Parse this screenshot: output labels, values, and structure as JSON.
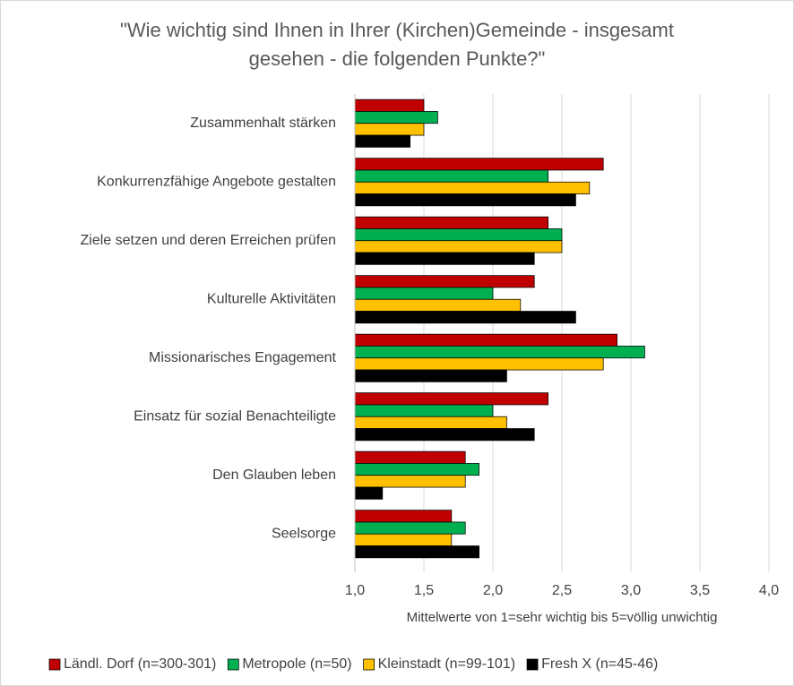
{
  "chart_data": {
    "type": "bar",
    "orientation": "horizontal",
    "title": "\"Wie wichtig sind Ihnen in Ihrer (Kirchen)Gemeinde - insgesamt gesehen - die folgenden Punkte?\"",
    "xlabel": "Mittelwerte von 1=sehr wichtig bis 5=völlig unwichtig",
    "categories": [
      "Zusammenhalt stärken",
      "Konkurrenzfähige Angebote gestalten",
      "Ziele setzen und deren Erreichen prüfen",
      "Kulturelle Aktivitäten",
      "Missionarisches Engagement",
      "Einsatz für sozial Benachteiligte",
      "Den Glauben leben",
      "Seelsorge"
    ],
    "series": [
      {
        "name": "Ländl. Dorf (n=300-301)",
        "color": "#c00000",
        "values": [
          1.5,
          2.8,
          2.4,
          2.3,
          2.9,
          2.4,
          1.8,
          1.7
        ]
      },
      {
        "name": "Metropole (n=50)",
        "color": "#00b050",
        "values": [
          1.6,
          2.4,
          2.5,
          2.0,
          3.1,
          2.0,
          1.9,
          1.8
        ]
      },
      {
        "name": "Kleinstadt (n=99-101)",
        "color": "#ffc000",
        "values": [
          1.5,
          2.7,
          2.5,
          2.2,
          2.8,
          2.1,
          1.8,
          1.7
        ]
      },
      {
        "name": "Fresh X (n=45-46)",
        "color": "#000000",
        "values": [
          1.4,
          2.6,
          2.3,
          2.6,
          2.1,
          2.3,
          1.2,
          1.9
        ]
      }
    ],
    "xlim": [
      1,
      4
    ],
    "xticks": [
      {
        "value": 1,
        "label": "1,0"
      },
      {
        "value": 1.5,
        "label": "1,5"
      },
      {
        "value": 2,
        "label": "2,0"
      },
      {
        "value": 2.5,
        "label": "2,5"
      },
      {
        "value": 3,
        "label": "3,0"
      },
      {
        "value": 3.5,
        "label": "3,5"
      },
      {
        "value": 4,
        "label": "4,0"
      }
    ],
    "grid": true
  }
}
